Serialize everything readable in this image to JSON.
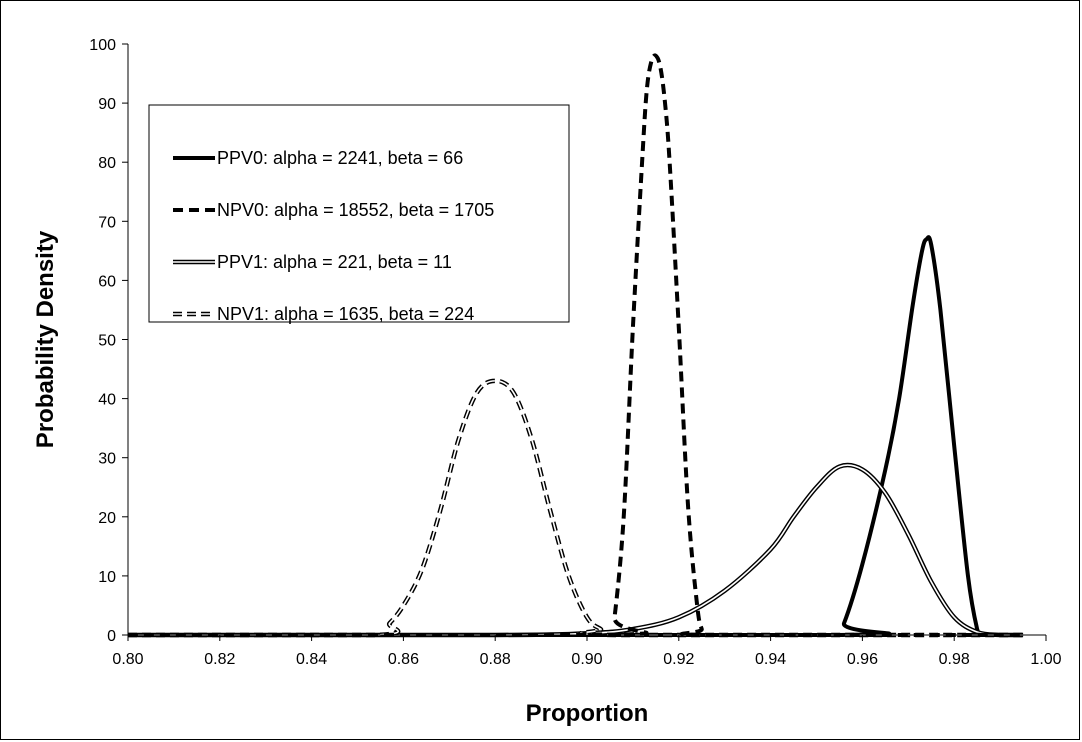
{
  "chart_data": {
    "type": "line",
    "title": "",
    "xlabel": "Proportion",
    "ylabel": "Probability Density",
    "xlim": [
      0.8,
      1.0
    ],
    "ylim": [
      0,
      100
    ],
    "grid": false,
    "legend_position": "top-left",
    "x_ticks": [
      "0.80",
      "0.82",
      "0.84",
      "0.86",
      "0.88",
      "0.90",
      "0.92",
      "0.94",
      "0.96",
      "0.98",
      "1.00"
    ],
    "y_ticks": [
      "0",
      "10",
      "20",
      "30",
      "40",
      "50",
      "60",
      "70",
      "80",
      "90",
      "100"
    ],
    "series": [
      {
        "name": "PPV0: alpha = 2241, beta = 66",
        "style": "solid-thick",
        "color": "#000000",
        "x": [
          0.8,
          0.954,
          0.956,
          0.96,
          0.965,
          0.968,
          0.971,
          0.973,
          0.974,
          0.975,
          0.977,
          0.98,
          0.983,
          0.985,
          0.986,
          0.995
        ],
        "y": [
          0,
          0,
          2,
          12,
          28,
          40,
          56,
          65,
          67,
          66,
          55,
          32,
          10,
          1,
          0,
          0
        ]
      },
      {
        "name": "NPV0: alpha = 18552, beta = 1705",
        "style": "dashed-thick",
        "color": "#000000",
        "x": [
          0.8,
          0.905,
          0.906,
          0.908,
          0.91,
          0.912,
          0.913,
          0.914,
          0.915,
          0.916,
          0.917,
          0.918,
          0.92,
          0.922,
          0.924,
          0.925,
          0.926,
          0.995
        ],
        "y": [
          0,
          0,
          3,
          20,
          52,
          80,
          92,
          97,
          98,
          96,
          90,
          80,
          52,
          22,
          5,
          1,
          0,
          0
        ]
      },
      {
        "name": "PPV1: alpha = 221, beta = 11",
        "style": "double",
        "color": "#000000",
        "x": [
          0.8,
          0.88,
          0.9,
          0.91,
          0.92,
          0.93,
          0.94,
          0.945,
          0.95,
          0.955,
          0.96,
          0.965,
          0.97,
          0.975,
          0.98,
          0.985,
          0.99,
          0.995
        ],
        "y": [
          0,
          0,
          0.3,
          1,
          3,
          7.5,
          14.5,
          20,
          25,
          28.5,
          28,
          24,
          17,
          9,
          3,
          0.5,
          0,
          0
        ]
      },
      {
        "name": "NPV1: alpha = 1635, beta = 224",
        "style": "double-dashed",
        "color": "#000000",
        "x": [
          0.8,
          0.854,
          0.857,
          0.86,
          0.864,
          0.868,
          0.872,
          0.876,
          0.88,
          0.884,
          0.888,
          0.892,
          0.896,
          0.9,
          0.903,
          0.906,
          0.995
        ],
        "y": [
          0,
          0,
          2,
          5,
          11,
          21,
          33,
          41,
          43,
          41,
          33,
          21,
          10,
          3,
          1,
          0,
          0
        ]
      }
    ]
  }
}
